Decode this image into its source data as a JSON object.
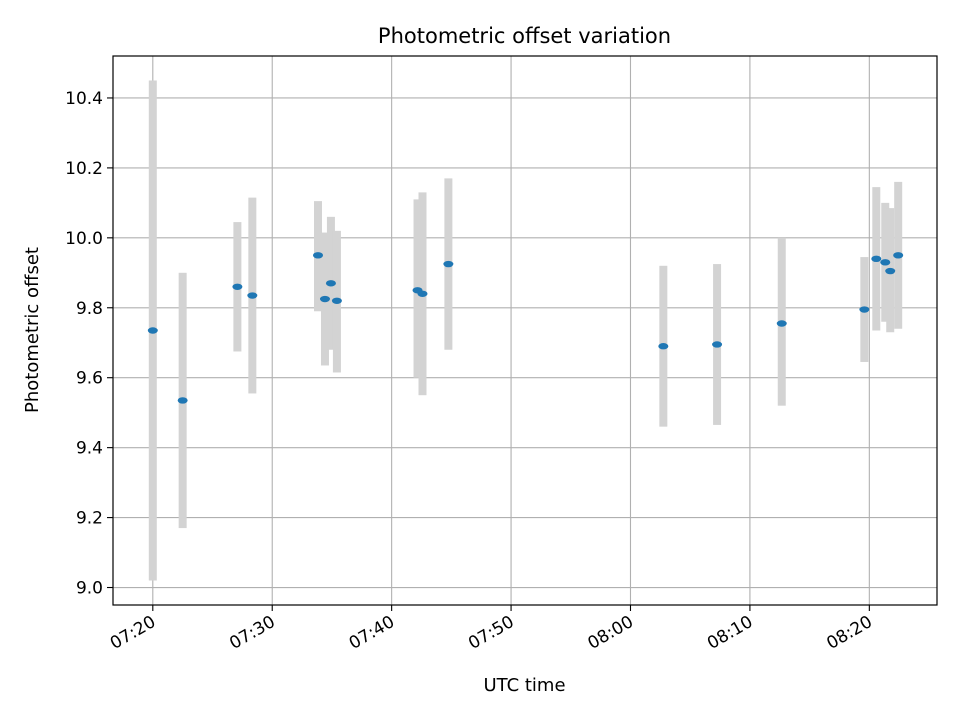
{
  "chart_data": {
    "type": "scatter",
    "title": "Photometric offset variation",
    "xlabel": "UTC time",
    "ylabel": "Photometric offset",
    "x_axis": {
      "kind": "time",
      "range": [
        "07:16:40",
        "08:25:40"
      ],
      "ticks": [
        "07:20",
        "07:30",
        "07:40",
        "07:50",
        "08:00",
        "08:10",
        "08:20"
      ]
    },
    "y_axis": {
      "range": [
        8.95,
        10.52
      ],
      "ticks": [
        "9.0",
        "9.2",
        "9.4",
        "9.6",
        "9.8",
        "10.0",
        "10.2",
        "10.4"
      ]
    },
    "grid": true,
    "colors": {
      "point": "#1f77b4",
      "errorbar": "#d3d3d3",
      "grid": "#b0b0b0"
    },
    "points": [
      {
        "time": "07:20:00",
        "y": 9.735,
        "ymin": 9.02,
        "ymax": 10.45
      },
      {
        "time": "07:22:30",
        "y": 9.535,
        "ymin": 9.17,
        "ymax": 9.9
      },
      {
        "time": "07:27:05",
        "y": 9.86,
        "ymin": 9.675,
        "ymax": 10.045
      },
      {
        "time": "07:28:20",
        "y": 9.835,
        "ymin": 9.555,
        "ymax": 10.115
      },
      {
        "time": "07:33:50",
        "y": 9.95,
        "ymin": 9.79,
        "ymax": 10.105
      },
      {
        "time": "07:34:25",
        "y": 9.825,
        "ymin": 9.635,
        "ymax": 10.015
      },
      {
        "time": "07:34:55",
        "y": 9.87,
        "ymin": 9.68,
        "ymax": 10.06
      },
      {
        "time": "07:35:25",
        "y": 9.82,
        "ymin": 9.615,
        "ymax": 10.02
      },
      {
        "time": "07:42:10",
        "y": 9.85,
        "ymin": 9.6,
        "ymax": 10.11
      },
      {
        "time": "07:42:35",
        "y": 9.84,
        "ymin": 9.55,
        "ymax": 10.13
      },
      {
        "time": "07:44:45",
        "y": 9.925,
        "ymin": 9.68,
        "ymax": 10.17
      },
      {
        "time": "08:02:45",
        "y": 9.69,
        "ymin": 9.46,
        "ymax": 9.92
      },
      {
        "time": "08:07:15",
        "y": 9.695,
        "ymin": 9.465,
        "ymax": 9.925
      },
      {
        "time": "08:12:40",
        "y": 9.755,
        "ymin": 9.52,
        "ymax": 10.0
      },
      {
        "time": "08:19:35",
        "y": 9.795,
        "ymin": 9.645,
        "ymax": 9.945
      },
      {
        "time": "08:20:35",
        "y": 9.94,
        "ymin": 9.735,
        "ymax": 10.145
      },
      {
        "time": "08:21:20",
        "y": 9.93,
        "ymin": 9.76,
        "ymax": 10.1
      },
      {
        "time": "08:21:45",
        "y": 9.905,
        "ymin": 9.73,
        "ymax": 10.085
      },
      {
        "time": "08:22:25",
        "y": 9.95,
        "ymin": 9.74,
        "ymax": 10.16
      }
    ]
  }
}
